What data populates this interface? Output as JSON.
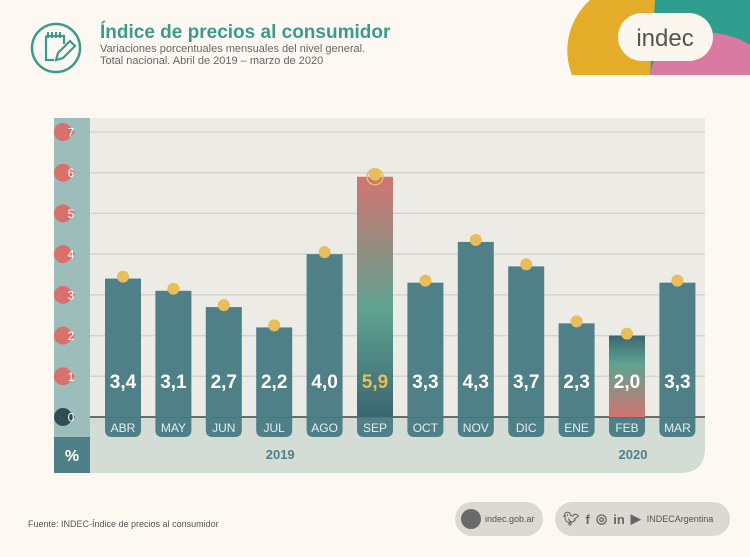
{
  "header": {
    "title": "Índice de precios al consumidor",
    "subtitle_line1": "Variaciones porcentuales mensuales del nivel general.",
    "subtitle_line2": "Total nacional. Abril de 2019 – marzo de 2020",
    "icon": "notepad-pencil-icon"
  },
  "logo": {
    "text": "indec",
    "colors": [
      "#e3ad2a",
      "#2f9e8f",
      "#d97ba0"
    ]
  },
  "chart_data": {
    "type": "bar",
    "categories": [
      "ABR",
      "MAY",
      "JUN",
      "JUL",
      "AGO",
      "SEP",
      "OCT",
      "NOV",
      "DIC",
      "ENE",
      "FEB",
      "MAR"
    ],
    "values": [
      3.4,
      3.1,
      2.7,
      2.2,
      4.0,
      5.9,
      3.3,
      4.3,
      3.7,
      2.3,
      2.0,
      3.3
    ],
    "value_labels": [
      "3,4",
      "3,1",
      "2,7",
      "2,2",
      "4,0",
      "5,9",
      "3,3",
      "4,3",
      "3,7",
      "2,3",
      "2,0",
      "3,3"
    ],
    "year_labels": [
      {
        "label": "2019",
        "under": "JUL"
      },
      {
        "label": "2020",
        "under": "FEB"
      }
    ],
    "ylabel": "%",
    "yticks": [
      "0",
      "1",
      "2",
      "3",
      "4",
      "5",
      "6",
      "7"
    ],
    "ylim": [
      0,
      7
    ],
    "grid": true,
    "highlight": {
      "max": "SEP",
      "min": "FEB"
    },
    "colors": {
      "bar": "#4f8088",
      "dot": "#e8bd5a",
      "tick_marker": "#d9706c",
      "highlight_red": "#d17570",
      "highlight_green": "#5fa391"
    }
  },
  "footer": {
    "source": "Fuente: INDEC-Índice de precios al consumidor",
    "website": "indec.gob.ar",
    "social_handle": "INDECArgentina",
    "social_icons": [
      "twitter-icon",
      "facebook-icon",
      "instagram-icon",
      "linkedin-icon",
      "youtube-icon"
    ]
  }
}
